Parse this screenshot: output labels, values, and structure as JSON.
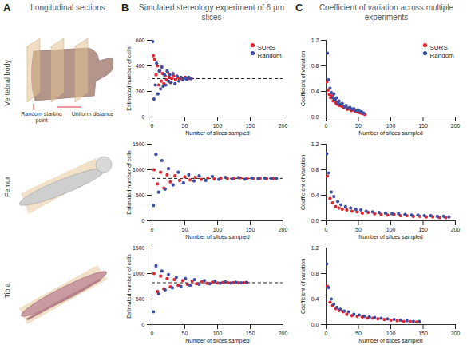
{
  "figure": {
    "panel_letters": [
      "A",
      "B",
      "C"
    ],
    "column_titles": [
      "Longitudinal sections",
      "Simulated stereology experiment of 6 µm slices",
      "Coefficient of variation across multiple experiments"
    ],
    "row_titles": [
      "Vertebral body",
      "Femur",
      "Tibia"
    ],
    "annotations": [
      "Random starting point",
      "Uniform distance"
    ]
  },
  "chart_data": [
    {
      "type": "scatter",
      "xlabel": "Number of slices sampled",
      "ylabel": "Estimated number of cells",
      "xlim": [
        0,
        200
      ],
      "xticks": [
        0,
        50,
        100,
        150,
        200
      ],
      "ylim": [
        0,
        600
      ],
      "yticks": [
        0,
        200,
        400,
        600
      ],
      "legend": "top-right",
      "reference": {
        "value": 300,
        "line_style": "dashed"
      },
      "series": [
        {
          "name": "SURS",
          "color": "#e3262e",
          "x": [
            2,
            4,
            6,
            8,
            10,
            12,
            14,
            16,
            18,
            20,
            22,
            24,
            26,
            28,
            30,
            33,
            36,
            39,
            42,
            45,
            48,
            51,
            54,
            57,
            60
          ],
          "values": [
            480,
            450,
            330,
            400,
            250,
            360,
            280,
            340,
            260,
            320,
            290,
            350,
            310,
            270,
            300,
            320,
            290,
            310,
            295,
            305,
            300,
            310,
            298,
            302,
            300
          ]
        },
        {
          "name": "Random",
          "color": "#3b4ea1",
          "x": [
            1,
            3,
            5,
            7,
            9,
            11,
            13,
            15,
            17,
            19,
            21,
            23,
            25,
            27,
            29,
            32,
            35,
            38,
            41,
            44,
            47,
            50,
            53,
            56,
            59
          ],
          "values": [
            590,
            140,
            250,
            420,
            180,
            360,
            220,
            390,
            240,
            330,
            250,
            360,
            280,
            330,
            270,
            340,
            260,
            320,
            280,
            310,
            290,
            305,
            295,
            310,
            300
          ]
        }
      ]
    },
    {
      "type": "scatter",
      "xlabel": "Number of slices sampled",
      "ylabel": "Coefficient of variation",
      "xlim": [
        0,
        200
      ],
      "xticks": [
        0,
        50,
        100,
        150,
        200
      ],
      "ylim": [
        0,
        1.2
      ],
      "yticks": [
        {
          "value": 0,
          "label": "0.0"
        },
        {
          "value": 0.4,
          "label": "0.4"
        },
        {
          "value": 0.8,
          "label": "0.8"
        },
        {
          "value": 1.2,
          "label": "1.2"
        }
      ],
      "legend": "top-right",
      "series": [
        {
          "name": "SURS",
          "color": "#e3262e",
          "x": [
            1,
            3,
            5,
            7,
            9,
            11,
            13,
            15,
            17,
            19,
            21,
            24,
            27,
            30,
            33,
            36,
            39,
            42,
            45,
            48,
            51,
            54,
            57,
            60
          ],
          "values": [
            0.55,
            0.42,
            0.35,
            0.3,
            0.33,
            0.25,
            0.28,
            0.22,
            0.2,
            0.24,
            0.18,
            0.17,
            0.15,
            0.16,
            0.12,
            0.13,
            0.1,
            0.11,
            0.09,
            0.08,
            0.07,
            0.06,
            0.05,
            0.04
          ]
        },
        {
          "name": "Random",
          "color": "#3b4ea1",
          "x": [
            2,
            4,
            6,
            8,
            10,
            12,
            14,
            16,
            18,
            20,
            22,
            25,
            28,
            31,
            34,
            37,
            40,
            43,
            46,
            49,
            52,
            55,
            58
          ],
          "values": [
            1.0,
            0.58,
            0.45,
            0.38,
            0.3,
            0.36,
            0.27,
            0.3,
            0.22,
            0.25,
            0.2,
            0.21,
            0.16,
            0.18,
            0.14,
            0.15,
            0.12,
            0.13,
            0.1,
            0.11,
            0.09,
            0.08,
            0.06
          ]
        }
      ]
    },
    {
      "type": "scatter",
      "xlabel": "Number of slices sampled",
      "ylabel": "Estimated number of cells",
      "xlim": [
        0,
        200
      ],
      "xticks": [
        0,
        50,
        100,
        150,
        200
      ],
      "ylim": [
        0,
        1500
      ],
      "yticks": [
        0,
        500,
        1000,
        1500
      ],
      "reference": {
        "value": 830,
        "line_style": "dashed"
      },
      "series": [
        {
          "name": "SURS",
          "color": "#e3262e",
          "x": [
            3,
            8,
            13,
            18,
            23,
            28,
            35,
            42,
            50,
            58,
            66,
            75,
            85,
            95,
            105,
            115,
            125,
            135,
            145,
            155,
            165,
            175,
            185
          ],
          "values": [
            1000,
            720,
            950,
            640,
            900,
            760,
            880,
            790,
            860,
            800,
            850,
            810,
            840,
            820,
            835,
            825,
            830,
            840,
            828,
            832,
            830,
            826,
            830
          ]
        },
        {
          "name": "Random",
          "color": "#3b4ea1",
          "x": [
            2,
            6,
            10,
            15,
            20,
            25,
            32,
            40,
            48,
            56,
            64,
            72,
            82,
            92,
            102,
            112,
            122,
            132,
            142,
            152,
            162,
            172,
            182,
            190
          ],
          "values": [
            300,
            1300,
            560,
            1180,
            620,
            1020,
            700,
            950,
            740,
            900,
            780,
            880,
            790,
            870,
            810,
            850,
            820,
            845,
            815,
            840,
            825,
            835,
            830,
            828
          ]
        }
      ]
    },
    {
      "type": "scatter",
      "xlabel": "Number of slices sampled",
      "ylabel": "Coefficient of variation",
      "xlim": [
        0,
        200
      ],
      "xticks": [
        0,
        50,
        100,
        150,
        200
      ],
      "ylim": [
        0,
        1.2
      ],
      "yticks": [
        {
          "value": 0,
          "label": "0.0"
        },
        {
          "value": 0.4,
          "label": "0.4"
        },
        {
          "value": 0.8,
          "label": "0.8"
        },
        {
          "value": 1.2,
          "label": "1.2"
        }
      ],
      "series": [
        {
          "name": "SURS",
          "color": "#e3262e",
          "x": [
            2,
            6,
            10,
            15,
            20,
            25,
            32,
            40,
            48,
            56,
            65,
            75,
            85,
            95,
            105,
            115,
            125,
            135,
            145,
            155,
            165,
            175,
            185
          ],
          "values": [
            0.7,
            0.35,
            0.28,
            0.22,
            0.2,
            0.18,
            0.17,
            0.15,
            0.14,
            0.12,
            0.13,
            0.11,
            0.1,
            0.09,
            0.1,
            0.08,
            0.08,
            0.07,
            0.07,
            0.06,
            0.06,
            0.05,
            0.05
          ]
        },
        {
          "name": "Random",
          "color": "#3b4ea1",
          "x": [
            1,
            4,
            8,
            12,
            18,
            23,
            30,
            38,
            46,
            54,
            62,
            72,
            82,
            92,
            102,
            112,
            122,
            132,
            142,
            152,
            162,
            172,
            182,
            190
          ],
          "values": [
            1.05,
            0.75,
            0.45,
            0.38,
            0.3,
            0.25,
            0.22,
            0.2,
            0.18,
            0.17,
            0.15,
            0.14,
            0.13,
            0.12,
            0.11,
            0.11,
            0.1,
            0.09,
            0.09,
            0.08,
            0.08,
            0.07,
            0.07,
            0.06
          ]
        }
      ]
    },
    {
      "type": "scatter",
      "xlabel": "Number of slices sampled",
      "ylabel": "Estimated number of cells",
      "xlim": [
        0,
        200
      ],
      "xticks": [
        0,
        50,
        100,
        150,
        200
      ],
      "ylim": [
        0,
        1500
      ],
      "yticks": [
        0,
        500,
        1000,
        1500
      ],
      "reference": {
        "value": 820,
        "line_style": "dashed"
      },
      "series": [
        {
          "name": "SURS",
          "color": "#e3262e",
          "x": [
            3,
            8,
            13,
            18,
            23,
            28,
            34,
            40,
            47,
            54,
            61,
            68,
            76,
            84,
            92,
            100,
            108,
            116,
            124,
            132,
            140,
            145
          ],
          "values": [
            1000,
            650,
            950,
            700,
            900,
            740,
            880,
            770,
            860,
            790,
            850,
            800,
            840,
            810,
            830,
            815,
            825,
            820,
            822,
            818,
            820,
            821
          ]
        },
        {
          "name": "Random",
          "color": "#3b4ea1",
          "x": [
            2,
            6,
            10,
            15,
            20,
            25,
            31,
            37,
            44,
            51,
            58,
            65,
            72,
            80,
            88,
            96,
            104,
            112,
            120,
            128,
            136,
            144
          ],
          "values": [
            250,
            1150,
            600,
            1050,
            680,
            980,
            720,
            920,
            750,
            900,
            770,
            880,
            790,
            860,
            800,
            850,
            810,
            840,
            815,
            830,
            820,
            825
          ]
        }
      ]
    },
    {
      "type": "scatter",
      "xlabel": "Number of slices sampled",
      "ylabel": "Coefficient of variation",
      "xlim": [
        0,
        200
      ],
      "xticks": [
        0,
        50,
        100,
        150,
        200
      ],
      "ylim": [
        0,
        1.2
      ],
      "yticks": [
        {
          "value": 0,
          "label": "0.0"
        },
        {
          "value": 0.4,
          "label": "0.4"
        },
        {
          "value": 0.8,
          "label": "0.8"
        },
        {
          "value": 1.2,
          "label": "1.2"
        }
      ],
      "series": [
        {
          "name": "SURS",
          "color": "#e3262e",
          "x": [
            2,
            6,
            10,
            15,
            20,
            26,
            32,
            40,
            48,
            56,
            64,
            72,
            80,
            90,
            100,
            110,
            120,
            130,
            140,
            145
          ],
          "values": [
            0.6,
            0.35,
            0.3,
            0.25,
            0.22,
            0.2,
            0.16,
            0.14,
            0.13,
            0.12,
            0.1,
            0.1,
            0.09,
            0.08,
            0.07,
            0.06,
            0.05,
            0.05,
            0.04,
            0.04
          ]
        },
        {
          "name": "Random",
          "color": "#3b4ea1",
          "x": [
            1,
            4,
            8,
            12,
            17,
            22,
            28,
            35,
            43,
            51,
            59,
            67,
            75,
            85,
            95,
            105,
            115,
            125,
            135,
            144
          ],
          "values": [
            0.95,
            0.58,
            0.4,
            0.32,
            0.27,
            0.24,
            0.21,
            0.2,
            0.16,
            0.15,
            0.13,
            0.12,
            0.11,
            0.1,
            0.09,
            0.08,
            0.07,
            0.06,
            0.05,
            0.05
          ]
        }
      ]
    }
  ]
}
